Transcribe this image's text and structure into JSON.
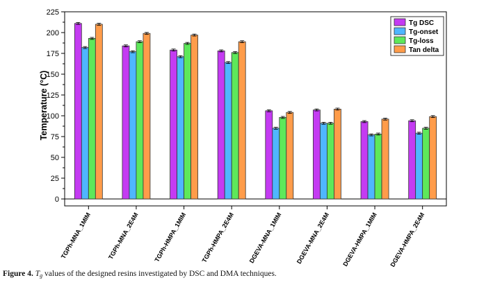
{
  "chart_data": {
    "type": "bar",
    "title": "",
    "xlabel": "",
    "ylabel": "Temperature (°C)",
    "ylim": [
      0,
      225
    ],
    "yticks": [
      0,
      25,
      50,
      75,
      100,
      125,
      150,
      175,
      200,
      225
    ],
    "grid": false,
    "legend_position": "top-right",
    "categories": [
      "TGPh-MNA_1MIM",
      "TGPh-MNA_2E4M",
      "TGPh-HMPA_1MIM",
      "TGPh-HMPA_2E4M",
      "DGEVA-MNA_1MIM",
      "DGEVA-MNA_2E4M",
      "DGEVA-HMPA_1MIM",
      "DGEVA-HMPA_2E4M"
    ],
    "series": [
      {
        "name": "Tg DSC",
        "color": "#c43bf2",
        "values": [
          211,
          184,
          179,
          178,
          106,
          107,
          93,
          94
        ]
      },
      {
        "name": "Tg-onset",
        "color": "#4fb6ff",
        "values": [
          182,
          177,
          171,
          164,
          85,
          91,
          77,
          79
        ]
      },
      {
        "name": "Tg-loss",
        "color": "#5ee85a",
        "values": [
          193,
          189,
          187,
          176,
          98,
          91,
          78,
          85
        ]
      },
      {
        "name": "Tan delta",
        "color": "#ff9c4a",
        "values": [
          210,
          199,
          197,
          189,
          104,
          108,
          96,
          99
        ]
      }
    ],
    "error": 1.2
  },
  "caption": {
    "label": "Figure 4.",
    "symbol": "T",
    "subscript": "g",
    "text": " values of the designed resins investigated by DSC and DMA techniques."
  }
}
